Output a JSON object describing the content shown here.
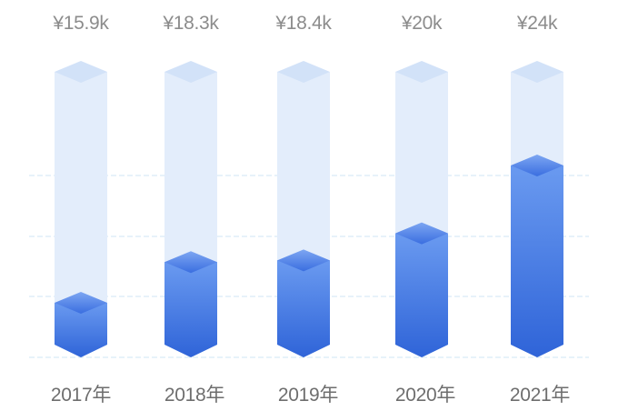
{
  "chart_data": {
    "type": "bar",
    "style": "3d-isometric-column",
    "title": "",
    "xlabel": "",
    "ylabel": "",
    "categories": [
      "2017年",
      "2018年",
      "2019年",
      "2020年",
      "2021年"
    ],
    "values": [
      15.9,
      18.3,
      18.4,
      20,
      24
    ],
    "value_labels": [
      "¥15.9k",
      "¥18.3k",
      "¥18.4k",
      "¥20k",
      "¥24k"
    ],
    "unit": "¥k",
    "grid": true,
    "grid_style": "dashed",
    "gridline_count": 4,
    "legend": null,
    "colors": {
      "bar_top": "#6a9af0",
      "bar_bottom": "#2f64d8",
      "bar_cap_top": "#7da6f2",
      "bar_cap_bottom": "#3a6ee0",
      "background_column": "#e3edfb",
      "background_cap": "#d2e2f8",
      "grid": "#cfe6f5",
      "value_label": "#8c8c8c",
      "category_label": "#6e6e6e"
    }
  },
  "labels": {
    "values": [
      "¥15.9k",
      "¥18.3k",
      "¥18.4k",
      "¥20k",
      "¥24k"
    ],
    "categories": [
      "2017年",
      "2018年",
      "2019年",
      "2020年",
      "2021年"
    ]
  }
}
